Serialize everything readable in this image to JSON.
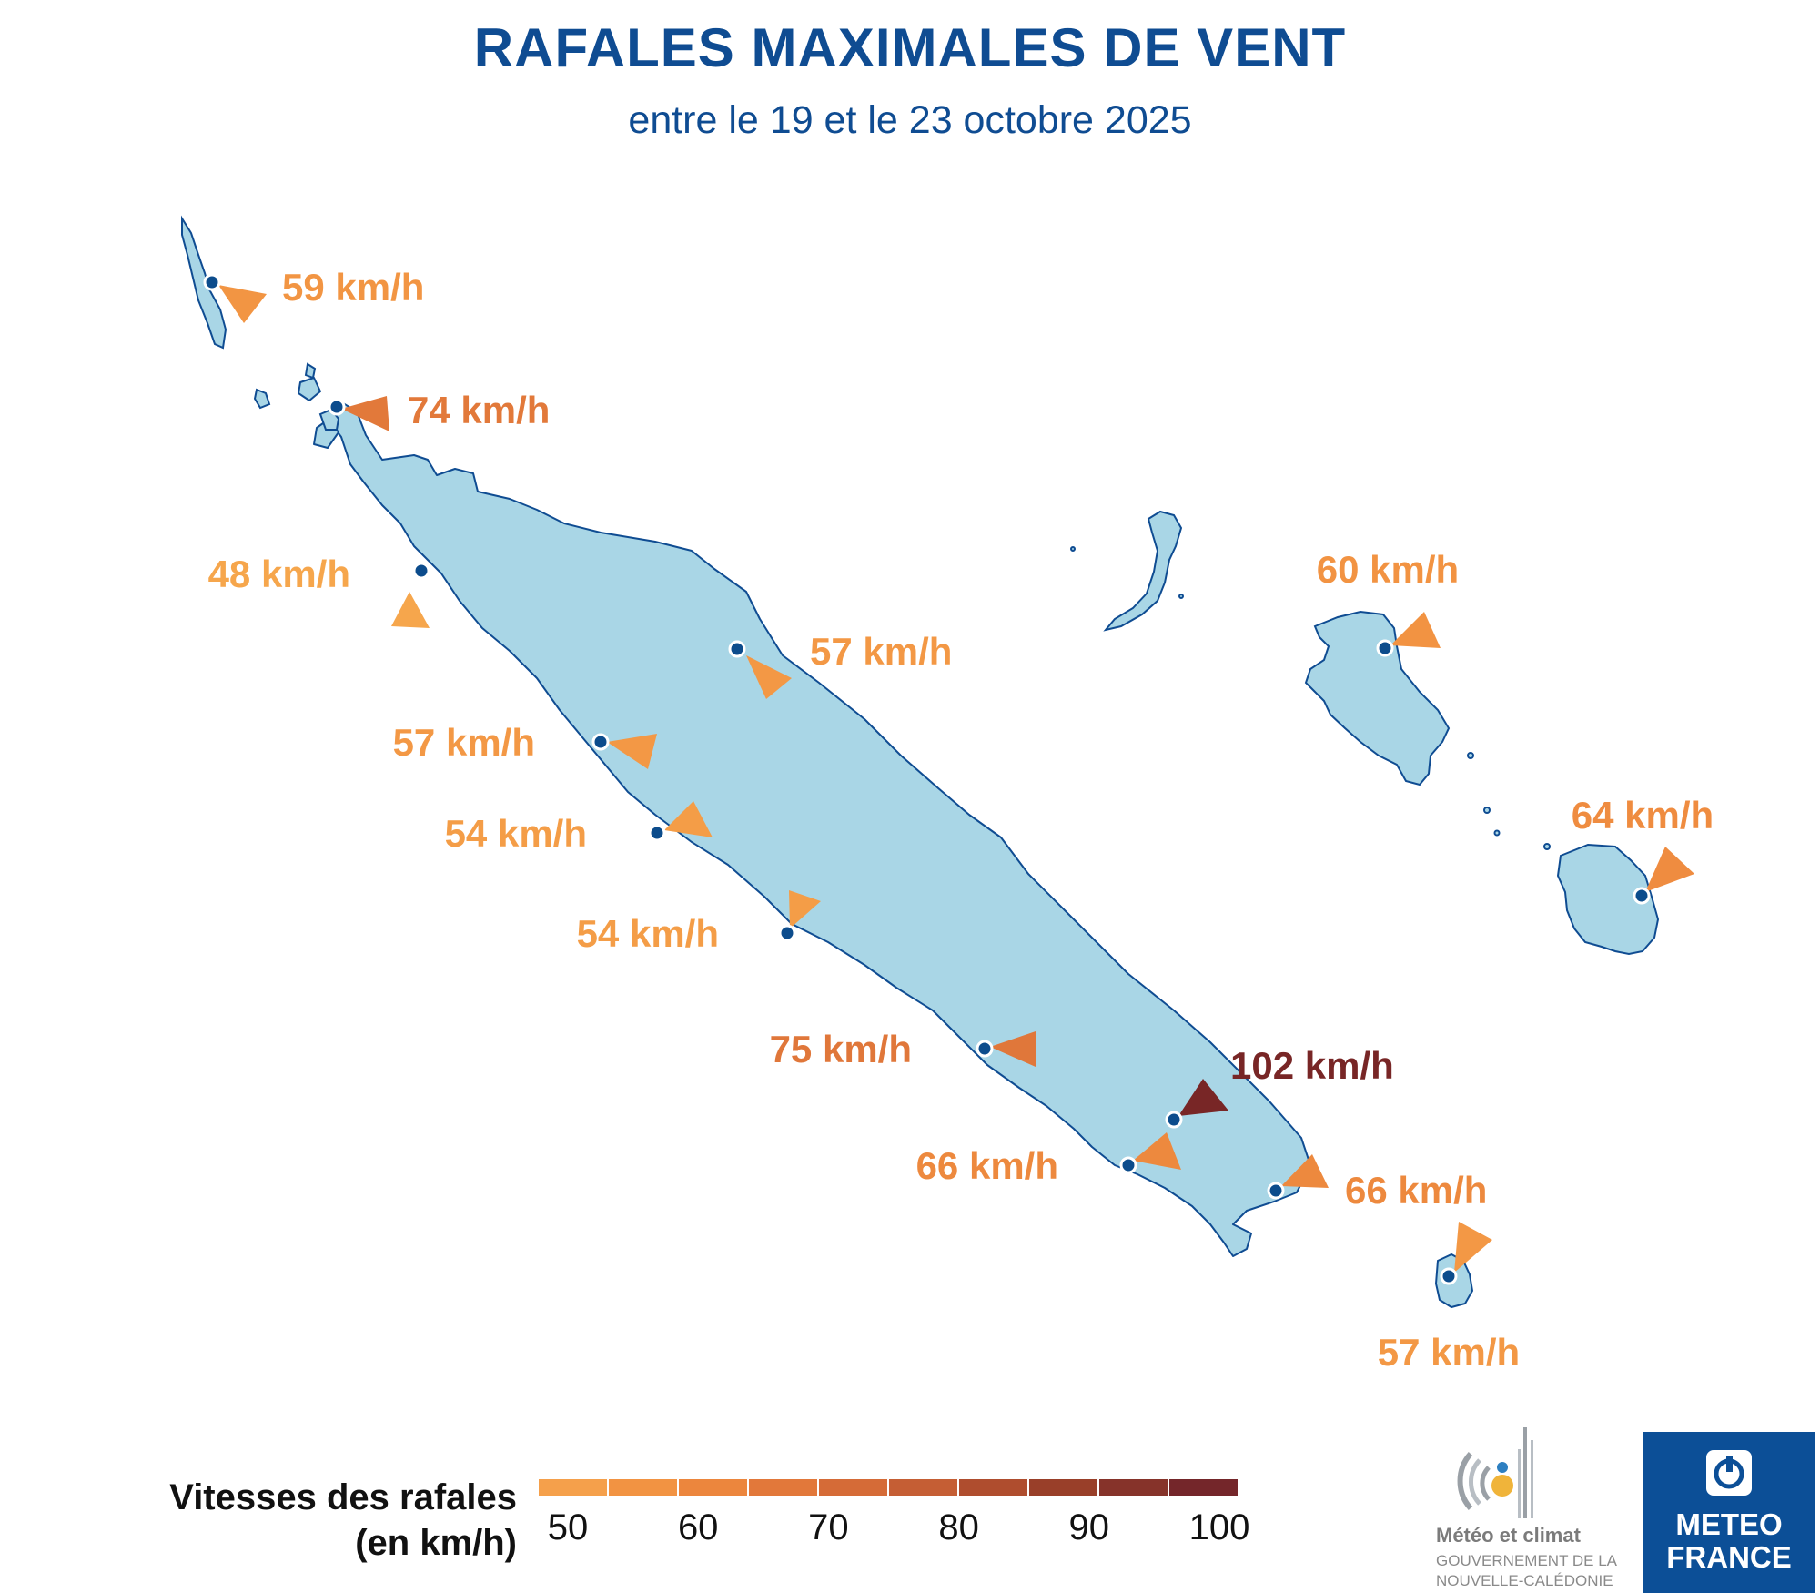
{
  "title": "RAFALES MAXIMALES DE VENT",
  "subtitle": "entre le 19 et le 23 octobre 2025",
  "stations": [
    {
      "label": "59 km/h",
      "speed": 59,
      "direction": "toward south-east"
    },
    {
      "label": "74 km/h",
      "speed": 74,
      "direction": "toward west"
    },
    {
      "label": "48 km/h",
      "speed": 48,
      "direction": "toward south"
    },
    {
      "label": "57 km/h",
      "speed": 57,
      "direction": "toward north-west"
    },
    {
      "label": "57 km/h",
      "speed": 57,
      "direction": "toward west"
    },
    {
      "label": "54 km/h",
      "speed": 54,
      "direction": "toward south-west"
    },
    {
      "label": "54 km/h",
      "speed": 54,
      "direction": "toward south"
    },
    {
      "label": "75 km/h",
      "speed": 75,
      "direction": "toward west"
    },
    {
      "label": "102 km/h",
      "speed": 102,
      "direction": "toward south-west"
    },
    {
      "label": "66 km/h",
      "speed": 66,
      "direction": "toward south-west"
    },
    {
      "label": "66 km/h",
      "speed": 66,
      "direction": "toward west"
    },
    {
      "label": "60 km/h",
      "speed": 60,
      "direction": "toward south-west"
    },
    {
      "label": "64 km/h",
      "speed": 64,
      "direction": "toward south-west"
    },
    {
      "label": "57 km/h",
      "speed": 57,
      "direction": "toward south-west"
    }
  ],
  "legend": {
    "title_line1": "Vitesses des rafales",
    "title_line2": "(en km/h)",
    "ticks": [
      "50",
      "60",
      "70",
      "80",
      "90",
      "100"
    ],
    "colors": [
      "#f5a04b",
      "#f29342",
      "#ec863d",
      "#e2783a",
      "#d56b37",
      "#c55e34",
      "#af4d2e",
      "#993f29",
      "#86332a",
      "#74262a"
    ]
  },
  "colors": {
    "land": "#a9d6e6",
    "land_border": "#0f4c92",
    "station_dot": "#0c4c8c",
    "title": "#0f4c92"
  },
  "logos": {
    "partner_name": "Météo et climat",
    "partner_line1": "GOUVERNEMENT DE LA",
    "partner_line2": "NOUVELLE-CALÉDONIE",
    "meteo_line1": "METEO",
    "meteo_line2": "FRANCE"
  }
}
